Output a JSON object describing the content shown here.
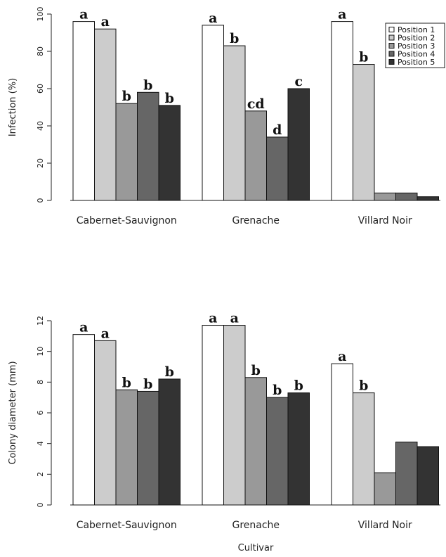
{
  "chart_data": [
    {
      "type": "bar",
      "ylabel": "Infection (%)",
      "xlabel": "",
      "ylim": [
        0,
        100
      ],
      "yticks": [
        0,
        20,
        40,
        60,
        80,
        100
      ],
      "categories": [
        "Cabernet-Sauvignon",
        "Grenache",
        "Villard Noir"
      ],
      "series": [
        {
          "name": "Position 1",
          "values": [
            96,
            94,
            96
          ],
          "labels": [
            "a",
            "a",
            "a"
          ]
        },
        {
          "name": "Position 2",
          "values": [
            92,
            83,
            73
          ],
          "labels": [
            "a",
            "b",
            "b"
          ]
        },
        {
          "name": "Position 3",
          "values": [
            52,
            48,
            4
          ],
          "labels": [
            "b",
            "cd",
            ""
          ]
        },
        {
          "name": "Position 4",
          "values": [
            58,
            34,
            4
          ],
          "labels": [
            "b",
            "d",
            ""
          ]
        },
        {
          "name": "Position 5",
          "values": [
            51,
            60,
            2
          ],
          "labels": [
            "b",
            "c",
            ""
          ]
        }
      ],
      "legend": "top-right"
    },
    {
      "type": "bar",
      "ylabel": "Colony diameter (mm)",
      "xlabel": "Cultivar",
      "ylim": [
        0,
        12
      ],
      "yticks": [
        0,
        2,
        4,
        6,
        8,
        10,
        12
      ],
      "categories": [
        "Cabernet-Sauvignon",
        "Grenache",
        "Villard Noir"
      ],
      "series": [
        {
          "name": "Position 1",
          "values": [
            11.1,
            11.7,
            9.2
          ],
          "labels": [
            "a",
            "a",
            "a"
          ]
        },
        {
          "name": "Position 2",
          "values": [
            10.7,
            11.7,
            7.3
          ],
          "labels": [
            "a",
            "a",
            "b"
          ]
        },
        {
          "name": "Position 3",
          "values": [
            7.5,
            8.3,
            2.1
          ],
          "labels": [
            "b",
            "b",
            ""
          ]
        },
        {
          "name": "Position 4",
          "values": [
            7.4,
            7.0,
            4.1
          ],
          "labels": [
            "b",
            "b",
            ""
          ]
        },
        {
          "name": "Position 5",
          "values": [
            8.2,
            7.3,
            3.8
          ],
          "labels": [
            "b",
            "b",
            ""
          ]
        }
      ]
    }
  ],
  "colors": [
    "#ffffff",
    "#cccccc",
    "#999999",
    "#666666",
    "#333333"
  ]
}
